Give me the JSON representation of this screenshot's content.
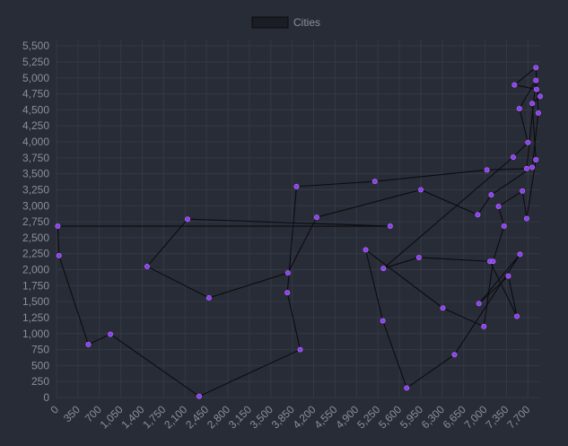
{
  "chart_data": {
    "type": "line",
    "legend": {
      "label": "Cities",
      "position": "top"
    },
    "grid": true,
    "x_ticks": [
      "0",
      "350",
      "700",
      "1,050",
      "1,400",
      "1,750",
      "2,100",
      "2,450",
      "2,800",
      "3,150",
      "3,500",
      "3,850",
      "4,200",
      "4,550",
      "4,900",
      "5,250",
      "5,600",
      "5,950",
      "6,300",
      "6,650",
      "7,000",
      "7,350",
      "7,700"
    ],
    "y_ticks": [
      "0",
      "250",
      "500",
      "750",
      "1,000",
      "1,250",
      "1,500",
      "1,750",
      "2,000",
      "2,250",
      "2,500",
      "2,750",
      "3,000",
      "3,250",
      "3,500",
      "3,750",
      "4,000",
      "4,250",
      "4,500",
      "4,750",
      "5,000",
      "5,250",
      "5,500"
    ],
    "xlim": [
      0,
      7900
    ],
    "ylim": [
      0,
      5600
    ],
    "series": [
      {
        "name": "Cities",
        "color": "#8b3ff0",
        "line_color": "#0b0c10",
        "points": [
          [
            20,
            2680
          ],
          [
            40,
            2220
          ],
          [
            520,
            830
          ],
          [
            880,
            990
          ],
          [
            2330,
            20
          ],
          [
            3980,
            750
          ],
          [
            3770,
            1640
          ],
          [
            3920,
            3300
          ],
          [
            5200,
            3380
          ],
          [
            7030,
            3560
          ],
          [
            7680,
            3580
          ],
          [
            7830,
            4960
          ],
          [
            7560,
            4520
          ],
          [
            7700,
            3990
          ],
          [
            7460,
            3760
          ],
          [
            5340,
            2020
          ],
          [
            5920,
            2190
          ],
          [
            7080,
            2130
          ],
          [
            7520,
            1270
          ],
          [
            7380,
            1900
          ],
          [
            6900,
            1470
          ],
          [
            7570,
            2240
          ],
          [
            6500,
            670
          ],
          [
            5720,
            150
          ],
          [
            5330,
            1200
          ],
          [
            5050,
            2310
          ],
          [
            6310,
            1400
          ],
          [
            6980,
            1110
          ],
          [
            7130,
            2130
          ],
          [
            7310,
            2680
          ],
          [
            7220,
            2990
          ],
          [
            7610,
            3230
          ],
          [
            7680,
            2800
          ],
          [
            7830,
            3720
          ],
          [
            7770,
            4600
          ],
          [
            7900,
            4710
          ],
          [
            7840,
            4820
          ],
          [
            7480,
            4890
          ],
          [
            7830,
            5160
          ],
          [
            7870,
            4450
          ],
          [
            7770,
            3600
          ],
          [
            7100,
            3170
          ],
          [
            6880,
            2860
          ],
          [
            5950,
            3250
          ],
          [
            4250,
            2820
          ],
          [
            3780,
            1950
          ],
          [
            2490,
            1560
          ],
          [
            1480,
            2050
          ],
          [
            2140,
            2790
          ],
          [
            5450,
            2680
          ],
          [
            20,
            2680
          ]
        ]
      }
    ]
  }
}
